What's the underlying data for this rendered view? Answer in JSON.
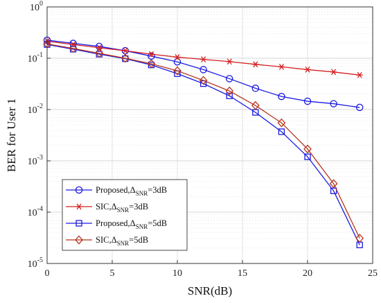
{
  "chart_data": {
    "type": "line",
    "xlabel": "SNR(dB)",
    "ylabel": "BER for User 1",
    "xlim": [
      0,
      25
    ],
    "ylim": [
      1e-05,
      1
    ],
    "yscale": "log",
    "grid": true,
    "x_ticks": [
      0,
      5,
      10,
      15,
      20,
      25
    ],
    "y_ticks": [
      {
        "value": 1e-05,
        "base": "10",
        "exp": "-5"
      },
      {
        "value": 0.0001,
        "base": "10",
        "exp": "-4"
      },
      {
        "value": 0.001,
        "base": "10",
        "exp": "-3"
      },
      {
        "value": 0.01,
        "base": "10",
        "exp": "-2"
      },
      {
        "value": 0.1,
        "base": "10",
        "exp": "-1"
      },
      {
        "value": 1,
        "base": "10",
        "exp": "0"
      }
    ],
    "legend_position": "bottom-left",
    "x": [
      0,
      2,
      4,
      6,
      8,
      10,
      12,
      14,
      16,
      18,
      20,
      22,
      24
    ],
    "series": [
      {
        "name": "Proposed,Δ_SNR=3dB",
        "legend": {
          "main": "Proposed,Δ",
          "sub": "SNR",
          "tail": "=3dB"
        },
        "color": "#1a1ae0",
        "marker": "circle",
        "values": [
          0.225,
          0.195,
          0.17,
          0.14,
          0.11,
          0.085,
          0.06,
          0.04,
          0.026,
          0.018,
          0.0145,
          0.013,
          0.011
        ]
      },
      {
        "name": "SIC,Δ_SNR=3dB",
        "legend": {
          "main": "SIC,Δ",
          "sub": "SNR",
          "tail": "=3dB"
        },
        "color": "#d42020",
        "marker": "asterisk",
        "values": [
          0.215,
          0.185,
          0.16,
          0.14,
          0.12,
          0.105,
          0.095,
          0.086,
          0.076,
          0.068,
          0.06,
          0.054,
          0.047
        ]
      },
      {
        "name": "Proposed,Δ_SNR=5dB",
        "legend": {
          "main": "Proposed,Δ",
          "sub": "SNR",
          "tail": "=5dB"
        },
        "color": "#1a1ae0",
        "marker": "square",
        "values": [
          0.185,
          0.15,
          0.12,
          0.098,
          0.074,
          0.05,
          0.032,
          0.0185,
          0.0088,
          0.0037,
          0.0012,
          0.00026,
          2.3e-05
        ]
      },
      {
        "name": "SIC,Δ_SNR=5dB",
        "legend": {
          "main": "SIC,Δ",
          "sub": "SNR",
          "tail": "=5dB"
        },
        "color": "#b5341f",
        "marker": "diamond",
        "values": [
          0.19,
          0.155,
          0.125,
          0.1,
          0.078,
          0.057,
          0.037,
          0.023,
          0.012,
          0.0055,
          0.0017,
          0.00036,
          3.1e-05
        ]
      }
    ]
  }
}
